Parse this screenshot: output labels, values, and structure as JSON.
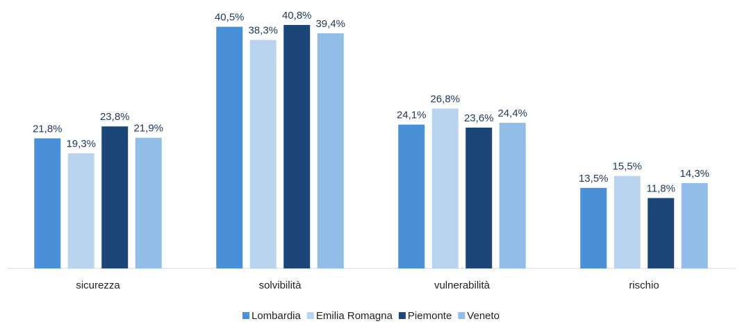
{
  "chart_data": {
    "type": "bar",
    "categories": [
      "sicurezza",
      "solvibilità",
      "vulnerabilità",
      "rischio"
    ],
    "series": [
      {
        "name": "Lombardia",
        "color": "#4a90d9",
        "values": [
          21.8,
          40.5,
          24.1,
          13.5
        ],
        "value_labels": [
          "21,8%",
          "40,5%",
          "24,1%",
          "13,5%"
        ]
      },
      {
        "name": "Emilia Romagna",
        "color": "#b9d4f1",
        "values": [
          19.3,
          38.3,
          26.8,
          15.5
        ],
        "value_labels": [
          "19,3%",
          "38,3%",
          "26,8%",
          "15,5%"
        ]
      },
      {
        "name": "Piemonte",
        "color": "#1b4677",
        "values": [
          23.8,
          40.8,
          23.6,
          11.8
        ],
        "value_labels": [
          "23,8%",
          "40,8%",
          "23,6%",
          "11,8%"
        ]
      },
      {
        "name": "Veneto",
        "color": "#93bde9",
        "values": [
          21.9,
          39.4,
          24.4,
          14.3
        ],
        "value_labels": [
          "21,9%",
          "39,4%",
          "24,4%",
          "14,3%"
        ]
      }
    ],
    "legend": "bottom"
  }
}
